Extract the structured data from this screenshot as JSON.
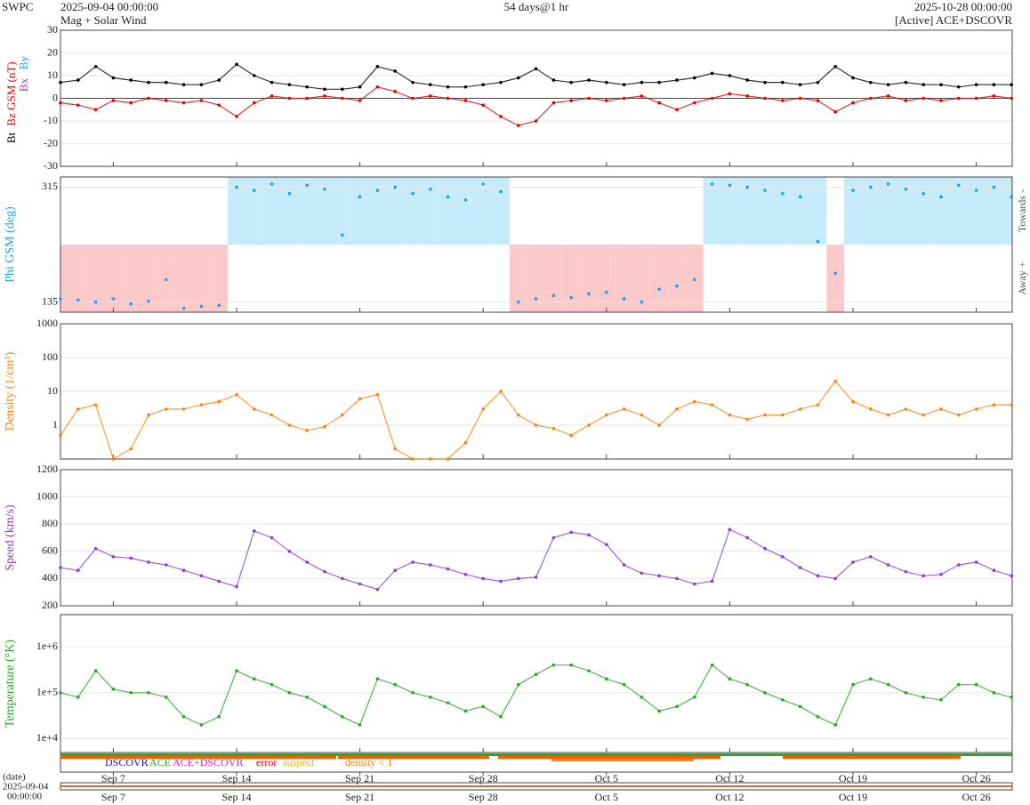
{
  "header": {
    "left_top": "SWPC",
    "start": "2025-09-04 00:00:00",
    "subtitle": "Mag + Solar Wind",
    "span": "54 days@1 hr",
    "end": "2025-10-28 00:00:00",
    "source": "[Active] ACE+DSCOVR"
  },
  "time_axis": {
    "x": [
      0,
      1,
      2,
      3,
      4,
      5,
      6,
      7,
      8,
      9,
      10,
      11,
      12,
      13,
      14,
      15,
      16,
      17,
      18,
      19,
      20,
      21,
      22,
      23,
      24,
      25,
      26,
      27,
      28,
      29,
      30,
      31,
      32,
      33,
      34,
      35,
      36,
      37,
      38,
      39,
      40,
      41,
      42,
      43,
      44,
      45,
      46,
      47,
      48,
      49,
      50,
      51,
      52,
      53,
      54
    ],
    "xlim": [
      0,
      54.04
    ],
    "xticks": [
      {
        "value": 3,
        "label": "Sep 7"
      },
      {
        "value": 10,
        "label": "Sep 14"
      },
      {
        "value": 17,
        "label": "Sep 21"
      },
      {
        "value": 24,
        "label": "Sep 28"
      },
      {
        "value": 31,
        "label": "Oct 5"
      },
      {
        "value": 38,
        "label": "Oct 12"
      },
      {
        "value": 45,
        "label": "Oct 19"
      },
      {
        "value": 52,
        "label": "Oct 26"
      }
    ],
    "date_label": "(date)",
    "start_date": "2025-09-04",
    "start_time": "00:00:00"
  },
  "chart_data": [
    {
      "type": "line",
      "ylabels": [
        {
          "text": "Bt",
          "color": "#000000"
        },
        {
          "text": "Bz GSM (nT)",
          "color": "#e00000"
        },
        {
          "text": "Bx",
          "color": "#8a3cd0"
        },
        {
          "text": "By",
          "color": "#1ea0e6"
        }
      ],
      "ylim": [
        -30,
        30
      ],
      "yticks": [
        -30,
        -20,
        -10,
        0,
        10,
        20,
        30
      ],
      "series": [
        {
          "name": "Bt",
          "color": "#000000",
          "values": [
            7,
            8,
            14,
            9,
            8,
            7,
            7,
            6,
            6,
            8,
            15,
            10,
            7,
            6,
            5,
            4,
            4,
            5,
            14,
            12,
            7,
            6,
            5,
            5,
            6,
            7,
            9,
            13,
            8,
            7,
            8,
            7,
            6,
            7,
            7,
            8,
            9,
            11,
            10,
            8,
            7,
            7,
            6,
            7,
            14,
            9,
            7,
            6,
            7,
            6,
            6,
            5,
            6,
            6,
            6
          ]
        },
        {
          "name": "Bz",
          "color": "#e00000",
          "values": [
            -2,
            -3,
            -5,
            -1,
            -2,
            0,
            -1,
            -2,
            -1,
            -3,
            -8,
            -2,
            1,
            0,
            0,
            1,
            0,
            -1,
            5,
            3,
            0,
            1,
            0,
            -1,
            -3,
            -8,
            -12,
            -10,
            -2,
            -1,
            0,
            -1,
            0,
            1,
            -2,
            -5,
            -2,
            0,
            2,
            1,
            0,
            -1,
            0,
            -1,
            -6,
            -2,
            0,
            1,
            -1,
            0,
            -1,
            0,
            0,
            1,
            0
          ]
        }
      ]
    },
    {
      "type": "phi",
      "ylabels": [
        {
          "text": "Phi GSM (deg)",
          "color": "#1ea0e6"
        }
      ],
      "right_labels": [
        "Towards -",
        "Away +"
      ],
      "ylim": [
        119,
        331
      ],
      "yticks": [
        135,
        315
      ],
      "series": [
        {
          "name": "Phi",
          "color": "#1ea0e6",
          "values": [
            140,
            138,
            135,
            140,
            132,
            136,
            170,
            125,
            128,
            130,
            315,
            310,
            320,
            305,
            318,
            312,
            240,
            300,
            310,
            315,
            305,
            312,
            300,
            295,
            320,
            308,
            135,
            140,
            145,
            142,
            148,
            150,
            140,
            135,
            155,
            160,
            170,
            320,
            318,
            315,
            310,
            305,
            300,
            230,
            180,
            310,
            315,
            320,
            312,
            305,
            300,
            318,
            310,
            315,
            300
          ]
        }
      ]
    },
    {
      "type": "line",
      "log": true,
      "ylabels": [
        {
          "text": "Density (1/cm³)",
          "color": "#ff7f0e"
        }
      ],
      "ylim": [
        0.1,
        1000
      ],
      "yticks": [
        1,
        10,
        100,
        1000
      ],
      "series": [
        {
          "name": "Density",
          "color": "#ff7f0e",
          "values": [
            0.5,
            3,
            4,
            0.1,
            0.2,
            2,
            3,
            3,
            4,
            5,
            8,
            3,
            2,
            1,
            0.7,
            0.9,
            2,
            6,
            8,
            0.2,
            0.1,
            0.1,
            0.1,
            0.3,
            3,
            10,
            2,
            1,
            0.8,
            0.5,
            1,
            2,
            3,
            2,
            1,
            3,
            5,
            4,
            2,
            1.5,
            2,
            2,
            3,
            4,
            20,
            5,
            3,
            2,
            3,
            2,
            3,
            2,
            3,
            4,
            4
          ]
        }
      ]
    },
    {
      "type": "line",
      "ylabels": [
        {
          "text": "Speed (km/s)",
          "color": "#8a3cd0"
        }
      ],
      "ylim": [
        200,
        1200
      ],
      "yticks": [
        200,
        400,
        600,
        800,
        1000,
        1200
      ],
      "series": [
        {
          "name": "Speed",
          "color": "#8a3cd0",
          "values": [
            480,
            460,
            620,
            560,
            550,
            520,
            500,
            460,
            420,
            380,
            340,
            750,
            700,
            600,
            520,
            450,
            400,
            360,
            320,
            460,
            520,
            500,
            470,
            430,
            400,
            380,
            400,
            410,
            700,
            740,
            720,
            650,
            500,
            440,
            420,
            400,
            360,
            380,
            760,
            700,
            620,
            560,
            480,
            420,
            400,
            520,
            560,
            500,
            450,
            420,
            430,
            500,
            520,
            460,
            420
          ]
        }
      ]
    },
    {
      "type": "line",
      "log": true,
      "ylabels": [
        {
          "text": "Temperature (°K)",
          "color": "#22a822"
        }
      ],
      "ylim": [
        5000,
        5000000
      ],
      "yticks": [
        {
          "value": 10000,
          "label": "1e+4"
        },
        {
          "value": 100000,
          "label": "1e+5"
        },
        {
          "value": 1000000,
          "label": "1e+6"
        }
      ],
      "series": [
        {
          "name": "Temperature",
          "color": "#22a822",
          "values": [
            100000,
            80000,
            300000,
            120000,
            100000,
            100000,
            80000,
            30000,
            20000,
            30000,
            300000,
            200000,
            150000,
            100000,
            80000,
            50000,
            30000,
            20000,
            200000,
            150000,
            100000,
            80000,
            60000,
            40000,
            50000,
            30000,
            150000,
            250000,
            400000,
            400000,
            300000,
            200000,
            150000,
            80000,
            40000,
            50000,
            80000,
            400000,
            200000,
            150000,
            100000,
            70000,
            50000,
            30000,
            20000,
            150000,
            200000,
            150000,
            100000,
            80000,
            70000,
            150000,
            150000,
            100000,
            80000
          ]
        }
      ]
    }
  ],
  "status_legend": [
    {
      "text": "DSCOVR",
      "color": "#1010c0"
    },
    {
      "text": "ACE",
      "color": "#20a020"
    },
    {
      "text": "ACE+DSCOVR",
      "color": "#e020c0"
    },
    {
      "text": "error",
      "color": "#e00000"
    },
    {
      "text": "suspect",
      "color": "#f0b000"
    },
    {
      "text": "density < 1",
      "color": "#ff7f0e"
    }
  ]
}
